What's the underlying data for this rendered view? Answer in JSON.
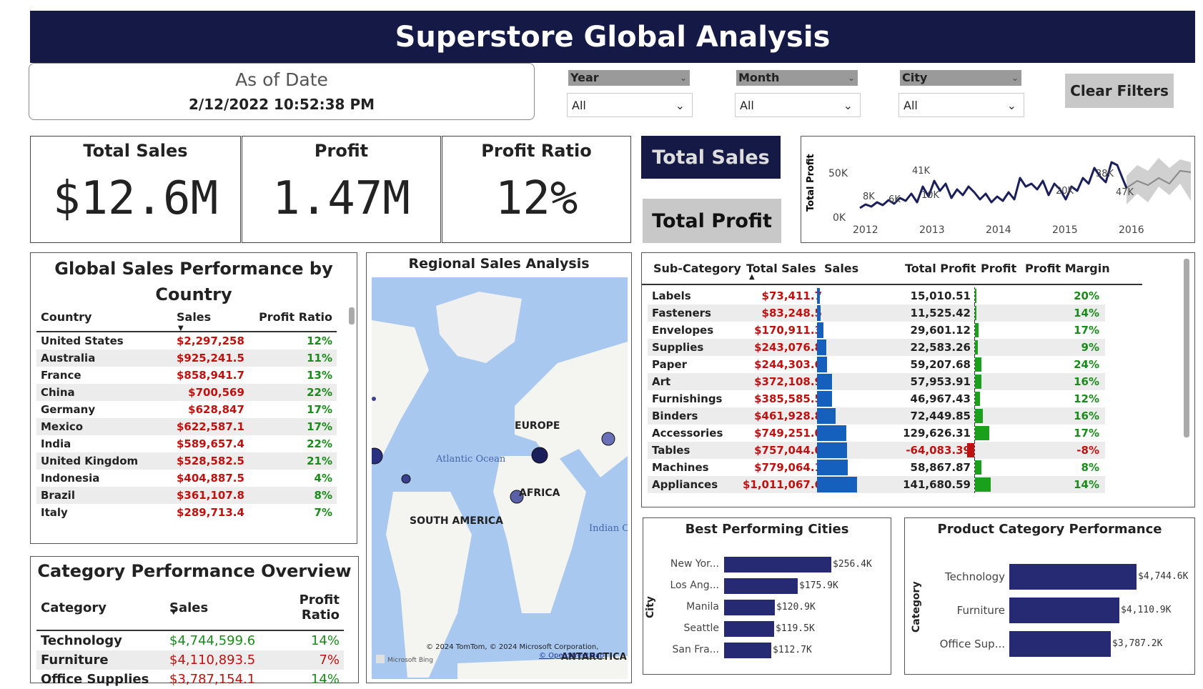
{
  "title": "Superstore Global Analysis",
  "as_of": {
    "label": "As of Date",
    "value": "2/12/2022 10:52:38 PM"
  },
  "filters": [
    {
      "name": "Year",
      "value": "All"
    },
    {
      "name": "Month",
      "value": "All"
    },
    {
      "name": "City",
      "value": "All"
    }
  ],
  "clear_filters": "Clear Filters",
  "kpis": {
    "total_sales": {
      "label": "Total Sales",
      "value": "$12.6M"
    },
    "profit": {
      "label": "Profit",
      "value": "1.47M"
    },
    "profit_ratio": {
      "label": "Profit Ratio",
      "value": "12%"
    }
  },
  "nav": {
    "total_sales": "Total Sales",
    "total_profit": "Total Profit"
  },
  "trend": {
    "ylabel": "Total Profit",
    "yticks": [
      "50K",
      "0K"
    ],
    "xticks": [
      "2012",
      "2013",
      "2014",
      "2015",
      "2016"
    ],
    "labels": [
      "41K",
      "8K",
      "6K",
      "10K",
      "20K",
      "38K",
      "47K"
    ]
  },
  "country": {
    "title": "Global Sales Performance by Country",
    "headers": [
      "Country",
      "Sales",
      "Profit Ratio"
    ],
    "rows": [
      [
        "United States",
        "$2,297,258",
        "12%"
      ],
      [
        "Australia",
        "$925,241.5",
        "11%"
      ],
      [
        "France",
        "$858,941.7",
        "13%"
      ],
      [
        "China",
        "$700,569",
        "22%"
      ],
      [
        "Germany",
        "$628,847",
        "17%"
      ],
      [
        "Mexico",
        "$622,587.1",
        "17%"
      ],
      [
        "India",
        "$589,657.4",
        "22%"
      ],
      [
        "United Kingdom",
        "$528,582.5",
        "21%"
      ],
      [
        "Indonesia",
        "$404,887.5",
        "4%"
      ],
      [
        "Brazil",
        "$361,107.8",
        "8%"
      ],
      [
        "Italy",
        "$289,713.4",
        "7%"
      ]
    ]
  },
  "category": {
    "title": "Category Performance Overview",
    "headers": [
      "Category",
      "Sales",
      "Profit Ratio"
    ],
    "rows": [
      [
        "Technology",
        "$4,744,599.6",
        "14%"
      ],
      [
        "Furniture",
        "$4,110,893.5",
        "7%"
      ],
      [
        "Office Supplies",
        "$3,787,154.1",
        "14%"
      ]
    ]
  },
  "map": {
    "title": "Regional Sales Analysis",
    "labels": {
      "europe": "EUROPE",
      "africa": "AFRICA",
      "south_america": "SOUTH AMERICA",
      "atlantic": "Atlantic Ocean",
      "indian": "Indian Ocean",
      "antarctica": "ANTARCTICA"
    },
    "copyright": "© 2024 TomTom, © 2024 Microsoft Corporation,",
    "osm": "© OpenStreetMap",
    "bing": "Microsoft Bing"
  },
  "subcat": {
    "headers": [
      "Sub-Category",
      "Total Sales",
      "Sales",
      "Total Profit",
      "Profit",
      "Profit Margin"
    ],
    "rows": [
      {
        "name": "Labels",
        "sales": "$73,411.7",
        "sv": 73411.7,
        "profit": "15,010.51",
        "pv": 15010.51,
        "margin": "20%"
      },
      {
        "name": "Fasteners",
        "sales": "$83,248.5",
        "sv": 83248.5,
        "profit": "11,525.42",
        "pv": 11525.42,
        "margin": "14%"
      },
      {
        "name": "Envelopes",
        "sales": "$170,911.3",
        "sv": 170911.3,
        "profit": "29,601.12",
        "pv": 29601.12,
        "margin": "17%"
      },
      {
        "name": "Supplies",
        "sales": "$243,076.8",
        "sv": 243076.8,
        "profit": "22,583.26",
        "pv": 22583.26,
        "margin": "9%"
      },
      {
        "name": "Paper",
        "sales": "$244,303.6",
        "sv": 244303.6,
        "profit": "59,207.68",
        "pv": 59207.68,
        "margin": "24%"
      },
      {
        "name": "Art",
        "sales": "$372,108.9",
        "sv": 372108.9,
        "profit": "57,953.91",
        "pv": 57953.91,
        "margin": "16%"
      },
      {
        "name": "Furnishings",
        "sales": "$385,585.5",
        "sv": 385585.5,
        "profit": "46,967.43",
        "pv": 46967.43,
        "margin": "12%"
      },
      {
        "name": "Binders",
        "sales": "$461,928.8",
        "sv": 461928.8,
        "profit": "72,449.85",
        "pv": 72449.85,
        "margin": "16%"
      },
      {
        "name": "Accessories",
        "sales": "$749,251.0",
        "sv": 749251.0,
        "profit": "129,626.31",
        "pv": 129626.31,
        "margin": "17%"
      },
      {
        "name": "Tables",
        "sales": "$757,044.0",
        "sv": 757044.0,
        "profit": "-64,083.39",
        "pv": -64083.39,
        "margin": "-8%"
      },
      {
        "name": "Machines",
        "sales": "$779,064.1",
        "sv": 779064.1,
        "profit": "58,867.87",
        "pv": 58867.87,
        "margin": "8%"
      },
      {
        "name": "Appliances",
        "sales": "$1,011,067.6",
        "sv": 1011067.6,
        "profit": "141,680.59",
        "pv": 141680.59,
        "margin": "14%"
      }
    ]
  },
  "cities": {
    "title": "Best Performing Cities",
    "axis": "City",
    "items": [
      {
        "label": "New Yor...",
        "value": 256.4,
        "text": "$256.4K"
      },
      {
        "label": "Los Ang...",
        "value": 175.9,
        "text": "$175.9K"
      },
      {
        "label": "Manila",
        "value": 120.9,
        "text": "$120.9K"
      },
      {
        "label": "Seattle",
        "value": 119.5,
        "text": "$119.5K"
      },
      {
        "label": "San Fra...",
        "value": 112.7,
        "text": "$112.7K"
      }
    ]
  },
  "prodcat": {
    "title": "Product Category Performance",
    "axis": "Category",
    "items": [
      {
        "label": "Technology",
        "value": 4744.6,
        "text": "$4,744.6K"
      },
      {
        "label": "Furniture",
        "value": 4110.9,
        "text": "$4,110.9K"
      },
      {
        "label": "Office Sup...",
        "value": 3787.2,
        "text": "$3,787.2K"
      }
    ]
  },
  "colors": {
    "banner": "#141a45",
    "bar_navy": "#262a72",
    "bar_blue": "#1560bd",
    "green": "#1a8a1a",
    "red": "#c01010"
  }
}
